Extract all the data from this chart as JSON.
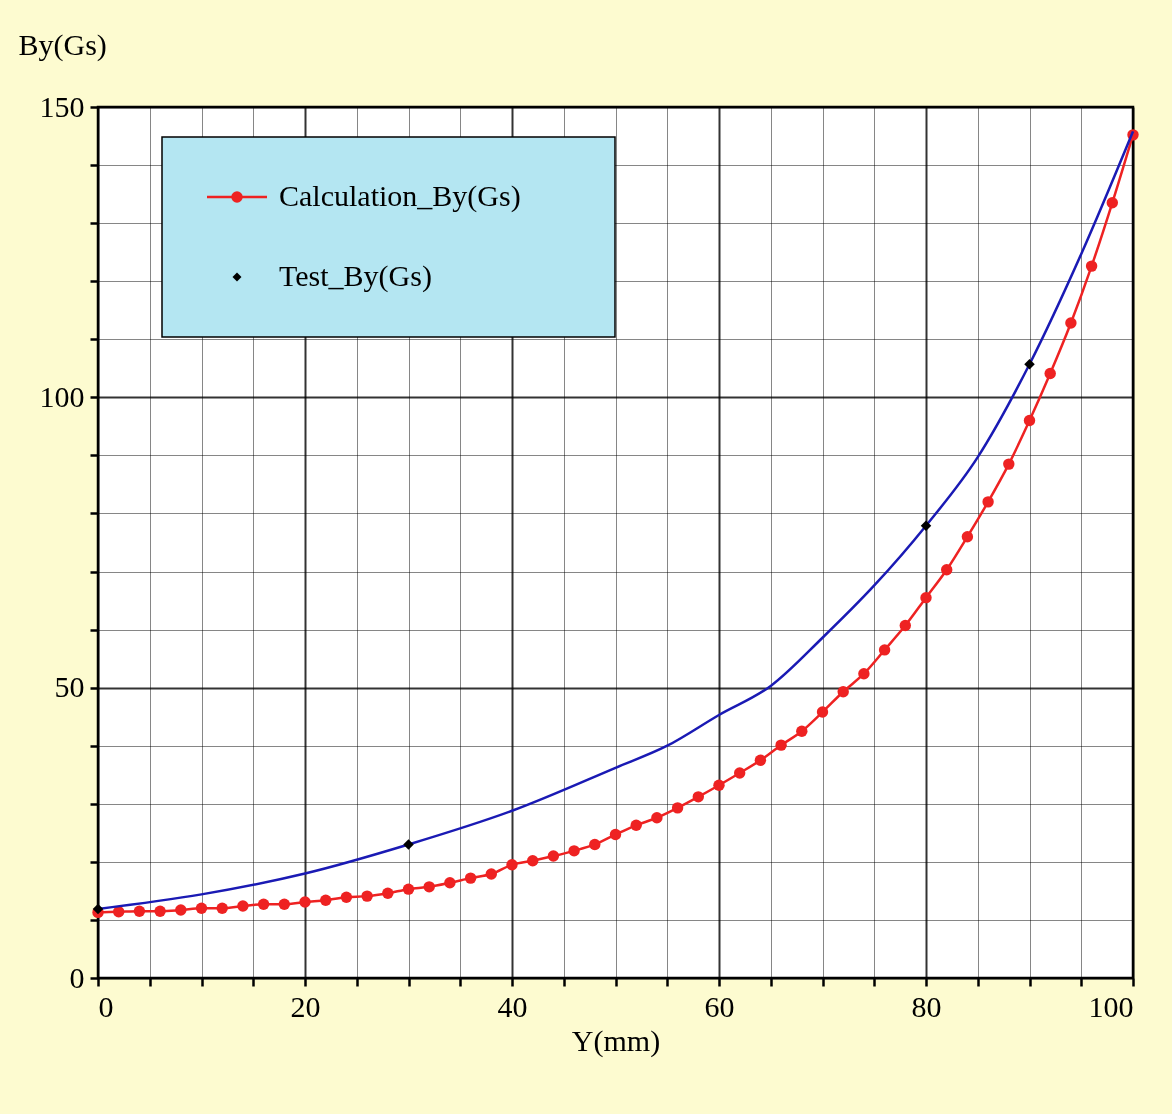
{
  "chart_data": {
    "type": "line",
    "xlabel": "Y(mm)",
    "ylabel": "By(Gs)",
    "xlim": [
      0,
      100
    ],
    "ylim": [
      0,
      150
    ],
    "xticks": [
      0,
      {
        "value": 5,
        "label": null
      },
      {
        "value": 10,
        "label": null
      },
      {
        "value": 15,
        "label": null
      },
      20,
      {
        "value": 25,
        "label": null
      },
      {
        "value": 30,
        "label": null
      },
      {
        "value": 35,
        "label": null
      },
      40,
      {
        "value": 45,
        "label": null
      },
      {
        "value": 50,
        "label": null
      },
      {
        "value": 55,
        "label": null
      },
      60,
      {
        "value": 65,
        "label": null
      },
      {
        "value": 70,
        "label": null
      },
      {
        "value": 75,
        "label": null
      },
      80,
      {
        "value": 85,
        "label": null
      },
      {
        "value": 90,
        "label": null
      },
      {
        "value": 95,
        "label": null
      },
      100
    ],
    "yticks": [
      0,
      {
        "value": 10,
        "label": null
      },
      {
        "value": 20,
        "label": null
      },
      {
        "value": 30,
        "label": null
      },
      {
        "value": 40,
        "label": null
      },
      50,
      {
        "value": 60,
        "label": null
      },
      {
        "value": 70,
        "label": null
      },
      {
        "value": 80,
        "label": null
      },
      {
        "value": 90,
        "label": null
      },
      100,
      {
        "value": 110,
        "label": null
      },
      {
        "value": 120,
        "label": null
      },
      {
        "value": 130,
        "label": null
      },
      {
        "value": 140,
        "label": null
      },
      150
    ],
    "grid": true,
    "legend": "top left",
    "series": [
      {
        "name": "Calculation_By(Gs)",
        "marker": "circle",
        "color": "#ee2222",
        "x": [
          0,
          2,
          4,
          6,
          8,
          10,
          12,
          14,
          16,
          18,
          20,
          22,
          24,
          26,
          28,
          30,
          32,
          34,
          36,
          38,
          40,
          42,
          44,
          46,
          48,
          50,
          52,
          54,
          56,
          58,
          60,
          62,
          64,
          66,
          68,
          70,
          72,
          74,
          76,
          78,
          80,
          82,
          84,
          86,
          88,
          90,
          92,
          94,
          96,
          98,
          100
        ],
        "values": [
          11.3,
          11.4,
          11.5,
          11.5,
          11.7,
          12,
          12,
          12.4,
          12.7,
          12.7,
          13.1,
          13.4,
          13.9,
          14.1,
          14.6,
          15.3,
          15.7,
          16.4,
          17.2,
          17.9,
          19.5,
          20.2,
          21,
          21.9,
          23,
          24.7,
          26.3,
          27.6,
          29.3,
          31.2,
          33.2,
          35.3,
          37.5,
          40.1,
          42.5,
          45.8,
          49.3,
          52.4,
          56.5,
          60.7,
          65.5,
          70.3,
          76,
          82,
          88.5,
          96,
          104.1,
          112.8,
          122.6,
          133.5,
          145.2
        ]
      },
      {
        "marker": "none",
        "color": "#1a1ab4",
        "x": [
          0,
          10,
          20,
          30,
          40,
          50,
          55,
          60,
          65,
          70,
          75,
          80,
          85,
          90,
          95,
          100
        ],
        "values": [
          11.9,
          14.4,
          18,
          23,
          28.8,
          36.2,
          40,
          45.3,
          50.3,
          58.6,
          67.6,
          77.9,
          89.7,
          105.7,
          124.7,
          145.8
        ]
      },
      {
        "name": "Test_By(Gs)",
        "type": "scatter",
        "marker": "diamond",
        "color": "#000000",
        "x": [
          0,
          30,
          80,
          90
        ],
        "values": [
          11.9,
          23,
          77.9,
          105.7
        ]
      }
    ]
  }
}
